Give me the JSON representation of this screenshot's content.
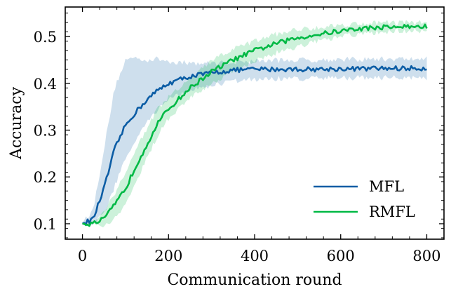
{
  "chart_data": {
    "type": "line",
    "title": "",
    "xlabel": "Communication round",
    "ylabel": "Accuracy",
    "xlim": [
      -40,
      840
    ],
    "ylim": [
      0.067,
      0.563
    ],
    "xticks": [
      0,
      200,
      400,
      600,
      800
    ],
    "xtick_labels": [
      "0",
      "200",
      "400",
      "600",
      "800"
    ],
    "yticks": [
      0.1,
      0.2,
      0.3,
      0.4,
      0.5
    ],
    "ytick_labels": [
      "0.1",
      "0.2",
      "0.3",
      "0.4",
      "0.5"
    ],
    "legend_position": "lower-right",
    "series": [
      {
        "name": "MFL",
        "color": "#0C5DA5",
        "x": [
          0,
          25,
          50,
          75,
          100,
          125,
          150,
          175,
          200,
          250,
          300,
          350,
          400,
          450,
          500,
          550,
          600,
          650,
          700,
          750,
          800
        ],
        "mean": [
          0.1,
          0.11,
          0.175,
          0.26,
          0.31,
          0.34,
          0.365,
          0.385,
          0.4,
          0.415,
          0.422,
          0.428,
          0.43,
          0.43,
          0.43,
          0.43,
          0.431,
          0.431,
          0.432,
          0.432,
          0.432
        ],
        "lower": [
          0.097,
          0.1,
          0.12,
          0.18,
          0.24,
          0.28,
          0.315,
          0.345,
          0.365,
          0.385,
          0.395,
          0.405,
          0.408,
          0.41,
          0.41,
          0.41,
          0.412,
          0.412,
          0.412,
          0.412,
          0.412
        ],
        "upper": [
          0.103,
          0.13,
          0.26,
          0.39,
          0.45,
          0.455,
          0.45,
          0.452,
          0.447,
          0.443,
          0.443,
          0.445,
          0.448,
          0.449,
          0.45,
          0.45,
          0.451,
          0.451,
          0.452,
          0.452,
          0.452
        ]
      },
      {
        "name": "RMFL",
        "color": "#00B945",
        "x": [
          0,
          25,
          50,
          75,
          100,
          125,
          150,
          175,
          200,
          250,
          300,
          350,
          400,
          450,
          500,
          550,
          600,
          650,
          700,
          750,
          800
        ],
        "mean": [
          0.1,
          0.1,
          0.11,
          0.14,
          0.175,
          0.225,
          0.27,
          0.315,
          0.345,
          0.39,
          0.425,
          0.45,
          0.47,
          0.485,
          0.497,
          0.505,
          0.512,
          0.517,
          0.52,
          0.521,
          0.521
        ],
        "lower": [
          0.098,
          0.095,
          0.095,
          0.11,
          0.14,
          0.19,
          0.24,
          0.29,
          0.325,
          0.37,
          0.4,
          0.425,
          0.448,
          0.465,
          0.478,
          0.49,
          0.5,
          0.505,
          0.51,
          0.512,
          0.512
        ],
        "upper": [
          0.102,
          0.105,
          0.125,
          0.165,
          0.21,
          0.26,
          0.305,
          0.345,
          0.37,
          0.41,
          0.448,
          0.473,
          0.49,
          0.505,
          0.515,
          0.52,
          0.525,
          0.528,
          0.53,
          0.53,
          0.53
        ]
      }
    ]
  }
}
